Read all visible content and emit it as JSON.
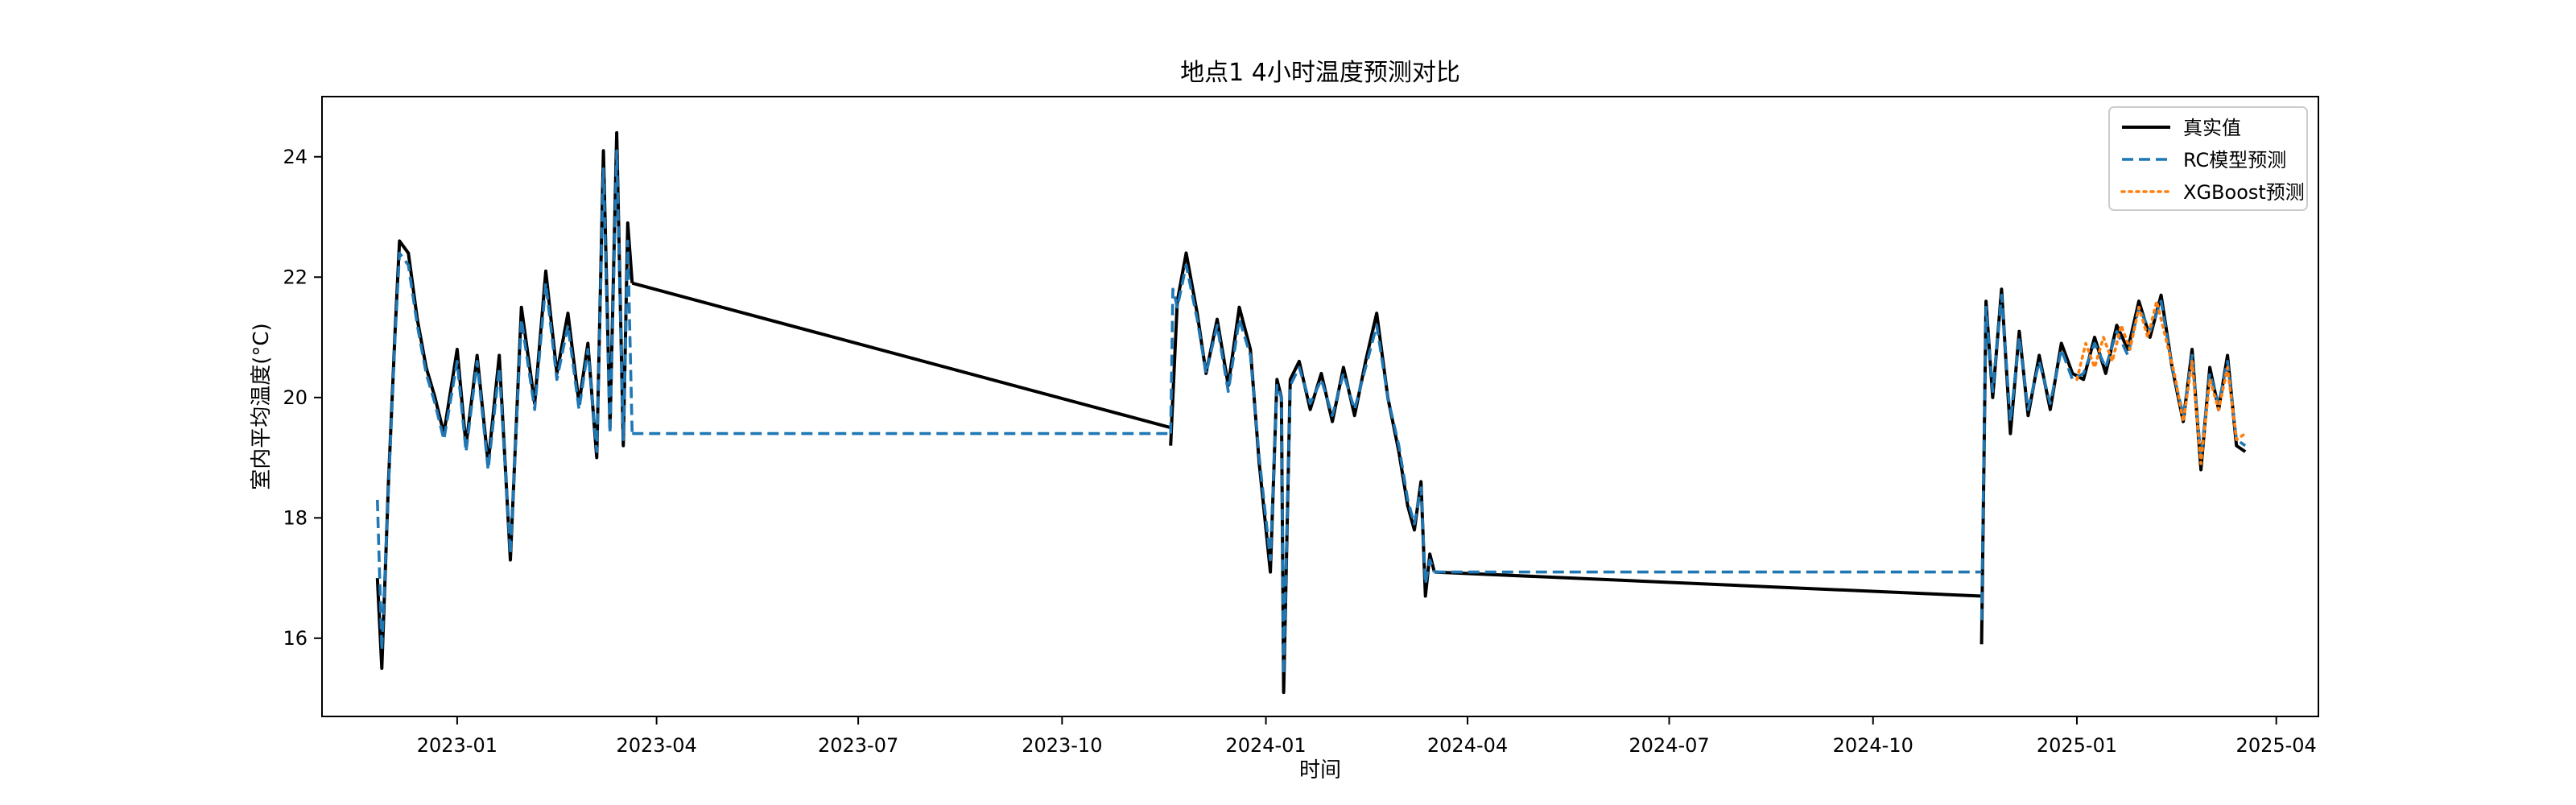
{
  "chart_data": {
    "type": "line",
    "title": "地点1 4小时温度预测对比",
    "xlabel": "时间",
    "ylabel": "室内平均温度(°C)",
    "xlim": [
      "2022-11-01",
      "2025-04-20"
    ],
    "ylim": [
      14.7,
      25
    ],
    "x_ticks": [
      "2023-01",
      "2023-04",
      "2023-07",
      "2023-10",
      "2024-01",
      "2024-04",
      "2024-07",
      "2024-10",
      "2025-01",
      "2025-04"
    ],
    "y_ticks": [
      16,
      18,
      20,
      22,
      24
    ],
    "grid": false,
    "legend_position": "top-right",
    "colors": {
      "actual": "#000000",
      "rc": "#1f77b4",
      "xgb": "#ff7f0e"
    },
    "series": [
      {
        "name": "真实值",
        "style": "solid",
        "segments": [
          {
            "x": [
              "2022-11-26",
              "2022-11-28",
              "2022-12-01",
              "2022-12-04",
              "2022-12-06",
              "2022-12-10",
              "2022-12-14",
              "2022-12-18",
              "2022-12-22",
              "2022-12-26",
              "2023-01-01",
              "2023-01-05",
              "2023-01-10",
              "2023-01-15",
              "2023-01-20",
              "2023-01-25",
              "2023-01-30",
              "2023-02-05",
              "2023-02-10",
              "2023-02-15",
              "2023-02-20",
              "2023-02-25",
              "2023-03-01",
              "2023-03-05",
              "2023-03-08",
              "2023-03-11",
              "2023-03-14",
              "2023-03-17",
              "2023-03-19",
              "2023-03-21"
            ],
            "y": [
              17.0,
              15.5,
              18.6,
              21.1,
              22.6,
              22.4,
              21.3,
              20.5,
              20.0,
              19.4,
              20.8,
              19.2,
              20.7,
              18.9,
              20.7,
              17.3,
              21.5,
              19.9,
              22.1,
              20.4,
              21.4,
              19.9,
              20.9,
              19.0,
              24.1,
              19.5,
              24.4,
              19.2,
              22.9,
              21.9
            ]
          },
          {
            "x": [
              "2023-03-21",
              "2023-11-19"
            ],
            "y": [
              21.9,
              19.5
            ]
          },
          {
            "x": [
              "2023-11-19",
              "2023-11-22",
              "2023-11-26",
              "2023-12-01",
              "2023-12-05",
              "2023-12-10",
              "2023-12-15",
              "2023-12-20",
              "2023-12-25",
              "2023-12-29",
              "2024-01-03",
              "2024-01-06",
              "2024-01-08",
              "2024-01-09",
              "2024-01-12",
              "2024-01-16",
              "2024-01-21",
              "2024-01-26",
              "2024-01-31",
              "2024-02-05",
              "2024-02-10",
              "2024-02-15",
              "2024-02-20",
              "2024-02-25",
              "2024-03-01",
              "2024-03-05",
              "2024-03-08",
              "2024-03-11",
              "2024-03-13",
              "2024-03-15",
              "2024-03-17"
            ],
            "y": [
              19.2,
              21.6,
              22.4,
              21.4,
              20.4,
              21.3,
              20.2,
              21.5,
              20.8,
              18.9,
              17.1,
              20.3,
              20.0,
              15.1,
              20.3,
              20.6,
              19.8,
              20.4,
              19.6,
              20.5,
              19.7,
              20.6,
              21.4,
              20.0,
              19.1,
              18.2,
              17.8,
              18.6,
              16.7,
              17.4,
              17.1
            ]
          },
          {
            "x": [
              "2024-03-17",
              "2024-11-19"
            ],
            "y": [
              17.1,
              16.7
            ]
          },
          {
            "x": [
              "2024-11-19",
              "2024-11-21",
              "2024-11-24",
              "2024-11-28",
              "2024-12-02",
              "2024-12-06",
              "2024-12-10",
              "2024-12-15",
              "2024-12-20",
              "2024-12-25",
              "2024-12-30",
              "2025-01-04",
              "2025-01-09",
              "2025-01-14",
              "2025-01-19",
              "2025-01-24",
              "2025-01-29",
              "2025-02-03",
              "2025-02-08",
              "2025-02-13",
              "2025-02-18",
              "2025-02-22",
              "2025-02-26",
              "2025-03-02",
              "2025-03-06",
              "2025-03-10",
              "2025-03-14",
              "2025-03-18"
            ],
            "y": [
              15.9,
              21.6,
              20.0,
              21.8,
              19.4,
              21.1,
              19.7,
              20.7,
              19.8,
              20.9,
              20.4,
              20.3,
              21.0,
              20.4,
              21.2,
              20.8,
              21.6,
              21.0,
              21.7,
              20.5,
              19.6,
              20.8,
              18.8,
              20.5,
              19.8,
              20.7,
              19.2,
              19.1
            ]
          }
        ]
      },
      {
        "name": "RC模型预测",
        "style": "dashed",
        "segments": [
          {
            "x": [
              "2022-11-26",
              "2022-11-28",
              "2022-12-01",
              "2022-12-04",
              "2022-12-06",
              "2022-12-10",
              "2022-12-14",
              "2022-12-18",
              "2022-12-22",
              "2022-12-26",
              "2023-01-01",
              "2023-01-05",
              "2023-01-10",
              "2023-01-15",
              "2023-01-20",
              "2023-01-25",
              "2023-01-30",
              "2023-02-05",
              "2023-02-10",
              "2023-02-15",
              "2023-02-20",
              "2023-02-25",
              "2023-03-01",
              "2023-03-05",
              "2023-03-08",
              "2023-03-11",
              "2023-03-14",
              "2023-03-17",
              "2023-03-19",
              "2023-03-21"
            ],
            "y": [
              18.3,
              15.8,
              18.5,
              21.0,
              22.4,
              22.2,
              21.2,
              20.4,
              19.9,
              19.3,
              20.6,
              19.1,
              20.6,
              18.8,
              20.5,
              17.4,
              21.3,
              19.8,
              21.9,
              20.3,
              21.2,
              19.8,
              20.8,
              19.1,
              23.8,
              19.4,
              24.1,
              19.3,
              22.6,
              19.4
            ]
          },
          {
            "x": [
              "2023-03-21",
              "2023-11-19"
            ],
            "y": [
              19.4,
              19.4
            ]
          },
          {
            "x": [
              "2023-11-19",
              "2023-11-20",
              "2023-11-22",
              "2023-11-26",
              "2023-12-01",
              "2023-12-05",
              "2023-12-10",
              "2023-12-15",
              "2023-12-20",
              "2023-12-25",
              "2023-12-29",
              "2024-01-03",
              "2024-01-06",
              "2024-01-08",
              "2024-01-09",
              "2024-01-12",
              "2024-01-16",
              "2024-01-21",
              "2024-01-26",
              "2024-01-31",
              "2024-02-05",
              "2024-02-10",
              "2024-02-15",
              "2024-02-20",
              "2024-02-25",
              "2024-03-01",
              "2024-03-05",
              "2024-03-08",
              "2024-03-11",
              "2024-03-13",
              "2024-03-15",
              "2024-03-17"
            ],
            "y": [
              19.4,
              21.8,
              21.5,
              22.2,
              21.3,
              20.4,
              21.2,
              20.1,
              21.3,
              20.7,
              19.0,
              17.3,
              20.2,
              20.0,
              15.4,
              20.2,
              20.5,
              19.9,
              20.3,
              19.7,
              20.4,
              19.8,
              20.5,
              21.2,
              20.0,
              19.2,
              18.3,
              17.9,
              18.5,
              16.9,
              17.3,
              17.1
            ]
          },
          {
            "x": [
              "2024-03-17",
              "2024-11-19"
            ],
            "y": [
              17.1,
              17.1
            ]
          },
          {
            "x": [
              "2024-11-19",
              "2024-11-21",
              "2024-11-24",
              "2024-11-28",
              "2024-12-02",
              "2024-12-06",
              "2024-12-10",
              "2024-12-15",
              "2024-12-20",
              "2024-12-25",
              "2024-12-30",
              "2025-01-04",
              "2025-01-09",
              "2025-01-14",
              "2025-01-19",
              "2025-01-24",
              "2025-01-29",
              "2025-02-03",
              "2025-02-08",
              "2025-02-13",
              "2025-02-18",
              "2025-02-22",
              "2025-02-26",
              "2025-03-02",
              "2025-03-06",
              "2025-03-10",
              "2025-03-14",
              "2025-03-18"
            ],
            "y": [
              16.3,
              21.5,
              20.1,
              21.7,
              19.6,
              21.0,
              19.8,
              20.6,
              19.9,
              20.8,
              20.3,
              20.4,
              20.9,
              20.5,
              21.1,
              20.7,
              21.5,
              21.1,
              21.6,
              20.5,
              19.7,
              20.7,
              19.0,
              20.4,
              19.9,
              20.6,
              19.3,
              19.2
            ]
          }
        ]
      },
      {
        "name": "XGBoost预测",
        "style": "dotted",
        "segments": [
          {
            "x": [
              "2025-01-01",
              "2025-01-05",
              "2025-01-09",
              "2025-01-13",
              "2025-01-17",
              "2025-01-21",
              "2025-01-25",
              "2025-01-29",
              "2025-02-02",
              "2025-02-06",
              "2025-02-10",
              "2025-02-14",
              "2025-02-18",
              "2025-02-22",
              "2025-02-26",
              "2025-03-02",
              "2025-03-06",
              "2025-03-10",
              "2025-03-14",
              "2025-03-18"
            ],
            "y": [
              20.3,
              20.9,
              20.5,
              21.0,
              20.6,
              21.2,
              20.8,
              21.5,
              21.0,
              21.6,
              21.0,
              20.4,
              19.6,
              20.6,
              18.9,
              20.3,
              19.8,
              20.5,
              19.3,
              19.4
            ]
          }
        ]
      }
    ]
  }
}
